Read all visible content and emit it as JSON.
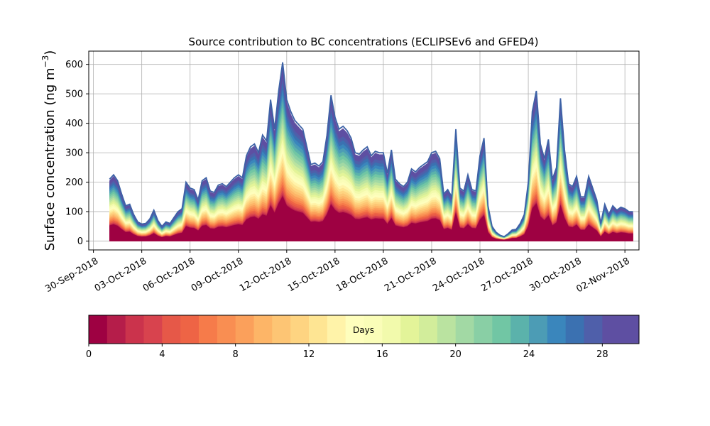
{
  "chart_data": {
    "type": "area",
    "title": "Source contribution to BC concentrations (ECLIPSEv6 and GFED4)",
    "ylabel_main": "Surface concentration (ng m",
    "ylabel_sup": "−3",
    "ylabel_close": ")",
    "xlabel": "",
    "ylim": [
      -30,
      645
    ],
    "grid": true,
    "x_ticks": [
      {
        "date": "2018-09-30",
        "label": "30-Sep-2018"
      },
      {
        "date": "2018-10-03",
        "label": "03-Oct-2018"
      },
      {
        "date": "2018-10-06",
        "label": "06-Oct-2018"
      },
      {
        "date": "2018-10-09",
        "label": "09-Oct-2018"
      },
      {
        "date": "2018-10-12",
        "label": "12-Oct-2018"
      },
      {
        "date": "2018-10-15",
        "label": "15-Oct-2018"
      },
      {
        "date": "2018-10-18",
        "label": "18-Oct-2018"
      },
      {
        "date": "2018-10-21",
        "label": "21-Oct-2018"
      },
      {
        "date": "2018-10-24",
        "label": "24-Oct-2018"
      },
      {
        "date": "2018-10-27",
        "label": "27-Oct-2018"
      },
      {
        "date": "2018-10-30",
        "label": "30-Oct-2018"
      },
      {
        "date": "2018-11-02",
        "label": "02-Nov-2018"
      }
    ],
    "y_ticks": [
      0,
      100,
      200,
      300,
      400,
      500,
      600
    ],
    "series_total": [
      [
        "2018-10-01 00:00",
        210
      ],
      [
        "2018-10-01 06:00",
        225
      ],
      [
        "2018-10-01 12:00",
        205
      ],
      [
        "2018-10-01 18:00",
        160
      ],
      [
        "2018-10-02 00:00",
        120
      ],
      [
        "2018-10-02 06:00",
        125
      ],
      [
        "2018-10-02 12:00",
        90
      ],
      [
        "2018-10-02 18:00",
        65
      ],
      [
        "2018-10-03 00:00",
        58
      ],
      [
        "2018-10-03 06:00",
        60
      ],
      [
        "2018-10-03 12:00",
        75
      ],
      [
        "2018-10-03 18:00",
        105
      ],
      [
        "2018-10-04 00:00",
        70
      ],
      [
        "2018-10-04 06:00",
        50
      ],
      [
        "2018-10-04 12:00",
        65
      ],
      [
        "2018-10-04 18:00",
        60
      ],
      [
        "2018-10-05 00:00",
        80
      ],
      [
        "2018-10-05 06:00",
        100
      ],
      [
        "2018-10-05 12:00",
        110
      ],
      [
        "2018-10-05 18:00",
        200
      ],
      [
        "2018-10-06 00:00",
        180
      ],
      [
        "2018-10-06 06:00",
        175
      ],
      [
        "2018-10-06 12:00",
        140
      ],
      [
        "2018-10-06 18:00",
        205
      ],
      [
        "2018-10-07 00:00",
        215
      ],
      [
        "2018-10-07 06:00",
        170
      ],
      [
        "2018-10-07 12:00",
        165
      ],
      [
        "2018-10-07 18:00",
        190
      ],
      [
        "2018-10-08 00:00",
        195
      ],
      [
        "2018-10-08 06:00",
        185
      ],
      [
        "2018-10-08 12:00",
        200
      ],
      [
        "2018-10-08 18:00",
        215
      ],
      [
        "2018-10-09 00:00",
        225
      ],
      [
        "2018-10-09 06:00",
        215
      ],
      [
        "2018-10-09 12:00",
        290
      ],
      [
        "2018-10-09 18:00",
        320
      ],
      [
        "2018-10-10 00:00",
        330
      ],
      [
        "2018-10-10 06:00",
        300
      ],
      [
        "2018-10-10 12:00",
        360
      ],
      [
        "2018-10-10 18:00",
        340
      ],
      [
        "2018-10-11 00:00",
        480
      ],
      [
        "2018-10-11 06:00",
        380
      ],
      [
        "2018-10-11 12:00",
        510
      ],
      [
        "2018-10-11 18:00",
        607
      ],
      [
        "2018-10-12 00:00",
        480
      ],
      [
        "2018-10-12 06:00",
        440
      ],
      [
        "2018-10-12 12:00",
        410
      ],
      [
        "2018-10-12 18:00",
        395
      ],
      [
        "2018-10-13 00:00",
        380
      ],
      [
        "2018-10-13 06:00",
        320
      ],
      [
        "2018-10-13 12:00",
        260
      ],
      [
        "2018-10-13 18:00",
        265
      ],
      [
        "2018-10-14 00:00",
        255
      ],
      [
        "2018-10-14 06:00",
        270
      ],
      [
        "2018-10-14 12:00",
        360
      ],
      [
        "2018-10-14 18:00",
        495
      ],
      [
        "2018-10-15 00:00",
        420
      ],
      [
        "2018-10-15 06:00",
        380
      ],
      [
        "2018-10-15 12:00",
        390
      ],
      [
        "2018-10-15 18:00",
        375
      ],
      [
        "2018-10-16 00:00",
        350
      ],
      [
        "2018-10-16 06:00",
        300
      ],
      [
        "2018-10-16 12:00",
        295
      ],
      [
        "2018-10-16 18:00",
        310
      ],
      [
        "2018-10-17 00:00",
        320
      ],
      [
        "2018-10-17 06:00",
        290
      ],
      [
        "2018-10-17 12:00",
        305
      ],
      [
        "2018-10-17 18:00",
        300
      ],
      [
        "2018-10-18 00:00",
        300
      ],
      [
        "2018-10-18 06:00",
        230
      ],
      [
        "2018-10-18 12:00",
        310
      ],
      [
        "2018-10-18 18:00",
        210
      ],
      [
        "2018-10-19 00:00",
        195
      ],
      [
        "2018-10-19 06:00",
        185
      ],
      [
        "2018-10-19 12:00",
        200
      ],
      [
        "2018-10-19 18:00",
        245
      ],
      [
        "2018-10-20 00:00",
        235
      ],
      [
        "2018-10-20 06:00",
        250
      ],
      [
        "2018-10-20 12:00",
        260
      ],
      [
        "2018-10-20 18:00",
        270
      ],
      [
        "2018-10-21 00:00",
        300
      ],
      [
        "2018-10-21 06:00",
        305
      ],
      [
        "2018-10-21 12:00",
        280
      ],
      [
        "2018-10-21 18:00",
        160
      ],
      [
        "2018-10-22 00:00",
        175
      ],
      [
        "2018-10-22 06:00",
        150
      ],
      [
        "2018-10-22 12:00",
        380
      ],
      [
        "2018-10-22 18:00",
        180
      ],
      [
        "2018-10-23 00:00",
        170
      ],
      [
        "2018-10-23 06:00",
        225
      ],
      [
        "2018-10-23 12:00",
        175
      ],
      [
        "2018-10-23 18:00",
        170
      ],
      [
        "2018-10-24 00:00",
        290
      ],
      [
        "2018-10-24 06:00",
        350
      ],
      [
        "2018-10-24 12:00",
        120
      ],
      [
        "2018-10-24 18:00",
        50
      ],
      [
        "2018-10-25 00:00",
        30
      ],
      [
        "2018-10-25 06:00",
        20
      ],
      [
        "2018-10-25 12:00",
        15
      ],
      [
        "2018-10-25 18:00",
        25
      ],
      [
        "2018-10-26 00:00",
        38
      ],
      [
        "2018-10-26 06:00",
        40
      ],
      [
        "2018-10-26 12:00",
        60
      ],
      [
        "2018-10-26 18:00",
        90
      ],
      [
        "2018-10-27 00:00",
        200
      ],
      [
        "2018-10-27 06:00",
        440
      ],
      [
        "2018-10-27 12:00",
        510
      ],
      [
        "2018-10-27 18:00",
        330
      ],
      [
        "2018-10-28 00:00",
        280
      ],
      [
        "2018-10-28 06:00",
        345
      ],
      [
        "2018-10-28 12:00",
        210
      ],
      [
        "2018-10-28 18:00",
        250
      ],
      [
        "2018-10-29 00:00",
        485
      ],
      [
        "2018-10-29 06:00",
        310
      ],
      [
        "2018-10-29 12:00",
        195
      ],
      [
        "2018-10-29 18:00",
        185
      ],
      [
        "2018-10-30 00:00",
        220
      ],
      [
        "2018-10-30 06:00",
        150
      ],
      [
        "2018-10-30 12:00",
        150
      ],
      [
        "2018-10-30 18:00",
        220
      ],
      [
        "2018-10-31 00:00",
        180
      ],
      [
        "2018-10-31 06:00",
        140
      ],
      [
        "2018-10-31 12:00",
        60
      ],
      [
        "2018-10-31 18:00",
        125
      ],
      [
        "2018-11-01 00:00",
        90
      ],
      [
        "2018-11-01 06:00",
        120
      ],
      [
        "2018-11-01 12:00",
        105
      ],
      [
        "2018-11-01 18:00",
        115
      ],
      [
        "2018-11-02 00:00",
        110
      ],
      [
        "2018-11-02 06:00",
        100
      ],
      [
        "2018-11-02 12:00",
        100
      ]
    ],
    "colorbar": {
      "label": "Days",
      "vmin": 0,
      "vmax": 30,
      "ticks": [
        0,
        4,
        8,
        12,
        16,
        20,
        24,
        28
      ],
      "colors": [
        "#9e0142",
        "#b51d4a",
        "#cb334c",
        "#d8434e",
        "#e65848",
        "#ee6445",
        "#f67b4a",
        "#f98e52",
        "#fba05b",
        "#fdb567",
        "#fdc574",
        "#fed481",
        "#fee593",
        "#fff3a9",
        "#fefebd",
        "#fafdb8",
        "#f2faac",
        "#e3f499",
        "#d2ed9b",
        "#bae3a0",
        "#a2d9a4",
        "#89cfa5",
        "#71c6a4",
        "#5bb2ab",
        "#4c9cb5",
        "#3a86bc",
        "#3b71b1",
        "#4f5faa",
        "#5e4fa2",
        "#5e4fa2"
      ]
    }
  }
}
